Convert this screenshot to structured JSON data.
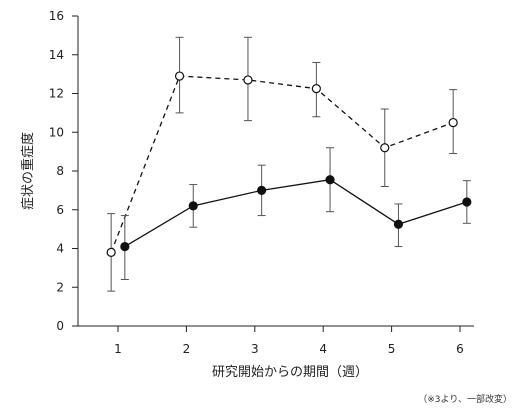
{
  "chart_data": {
    "type": "line",
    "title": "",
    "xlabel": "研究開始からの期間（週）",
    "ylabel": "症状の重症度",
    "note": "（※3より、一部改変）",
    "x": [
      1,
      2,
      3,
      4,
      5,
      6
    ],
    "x_ticks": [
      "1",
      "2",
      "3",
      "4",
      "5",
      "6"
    ],
    "ylim": [
      0,
      16
    ],
    "y_ticks": [
      "0",
      "2",
      "4",
      "6",
      "8",
      "10",
      "12",
      "14",
      "16"
    ],
    "grid": false,
    "legend": "none",
    "series": [
      {
        "style": "dashed",
        "marker": "open-circle",
        "x_offset": -0.1,
        "values": [
          3.8,
          12.9,
          12.7,
          12.25,
          9.2,
          10.5
        ],
        "err_upper": [
          5.8,
          14.9,
          14.9,
          13.6,
          11.2,
          12.2
        ],
        "err_lower": [
          1.8,
          11.0,
          10.6,
          10.8,
          7.2,
          8.9
        ]
      },
      {
        "style": "solid",
        "marker": "filled-circle",
        "x_offset": 0.1,
        "values": [
          4.1,
          6.2,
          7.0,
          7.55,
          5.25,
          6.4
        ],
        "err_upper": [
          5.7,
          7.3,
          8.3,
          9.2,
          6.3,
          7.5
        ],
        "err_lower": [
          2.4,
          5.1,
          5.7,
          5.9,
          4.1,
          5.3
        ]
      }
    ]
  }
}
